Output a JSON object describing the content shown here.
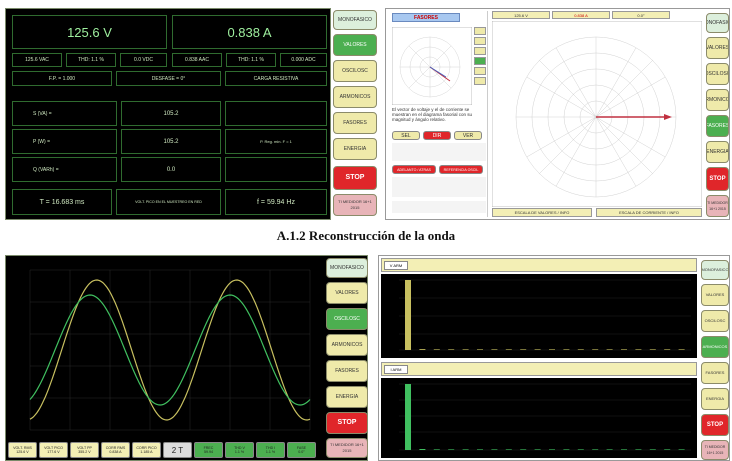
{
  "caption": "A.1.2 Reconstrucción de la onda",
  "sidebar": {
    "monofasico": "MONOFASICO",
    "valores": "VALORES",
    "osciloscopio": "OSCILOSC",
    "armonicos": "ARMONICOS",
    "fasores": "FASORES",
    "energia": "ENERGIA",
    "stop": "STOP",
    "extra": "TI MEDIDOR 16+1 2015"
  },
  "valores_panel": {
    "voltage": "125.6 V",
    "current": "0.838 A",
    "vac": "125.6 VAC",
    "thd_v": "THD: 1.1 %",
    "vdc": "0.0 VDC",
    "iac": "0.838 AAC",
    "thd_i": "THD: 1.1 %",
    "idc": "0.000 ADC",
    "fp": "F.P. = 1.000",
    "desfase": "DESFASE = 0°",
    "carga": "CARGA RESISTIVA",
    "s_label": "S (VA) =",
    "s_value": "105.2",
    "p_label": "P (W) =",
    "p_value": "105.2",
    "p_note": "P. Reg. min. F = 1",
    "q_label": "Q (VARh) =",
    "q_value": "0.0",
    "period": "T = 16.683 ms",
    "note": "VOLT. PICO EN EL MUESTREO EN RED",
    "freq": "f = 59.94 Hz"
  },
  "fasores_panel": {
    "title": "FASORES",
    "header_v": "125.6 V",
    "header_i": "0.838 A",
    "header_ang": "0.0°",
    "btn_sel": "SEL",
    "btn_dir": "DIR",
    "btn_ver": "VER",
    "btn_adelanto": "ADELANTO / ATRAS",
    "btn_referencia": "REFERENCIA OSCIL",
    "desc": "El vector de voltaje y el de corriente se muestran en el diagrama fasorial con su magnitud y ángulo relativo.",
    "footer_left": "ESCALA DE VALORES / INFO",
    "footer_right": "ESCALA DE CORRIENTE / INFO"
  },
  "osc_panel": {
    "bottom_labels": [
      "VOLT. RMS",
      "VOLT PICO",
      "VOLT PP",
      "CORR RMS",
      "CORR PICO",
      "2 T",
      "FREC",
      "THD V",
      "THD I",
      "FASE"
    ],
    "bottom_values": [
      "125.6 V",
      "177.6 V",
      "355.2 V",
      "0.838 A",
      "1.185 A",
      "",
      "59.94",
      "1.1 %",
      "1.1 %",
      "0.0°"
    ]
  },
  "arm_panel": {
    "volt_tab": "V ARM",
    "corr_tab": "I ARM",
    "volt_bars": [
      100,
      1.2,
      0.6,
      0.4,
      0.3,
      0.3,
      0.2,
      0.2,
      0.2,
      0.2,
      0.1,
      0.1,
      0.1,
      0.1,
      0.1,
      0.1,
      0.1,
      0.1,
      0.1,
      0.1
    ],
    "corr_bars": [
      100,
      1.5,
      0.8,
      0.5,
      0.4,
      0.3,
      0.3,
      0.2,
      0.2,
      0.2,
      0.1,
      0.1,
      0.1,
      0.1,
      0.1,
      0.1,
      0.1,
      0.1,
      0.1,
      0.1
    ]
  },
  "colors": {
    "accent_green": "#4caf50",
    "stop_red": "#e0262a",
    "voltage_trace": "#c8c060",
    "current_trace": "#40c060"
  }
}
